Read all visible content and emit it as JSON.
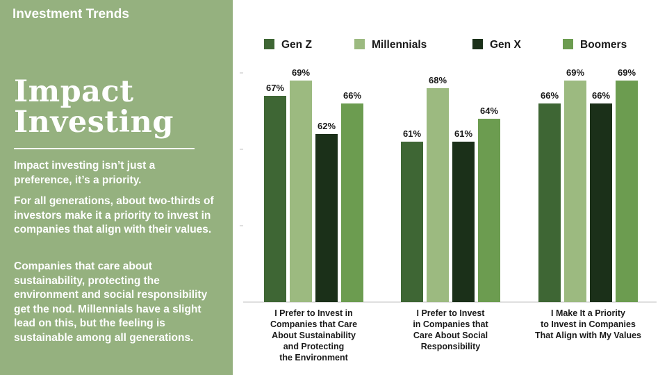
{
  "header": {
    "section_label": "Investment Trends"
  },
  "sidebar": {
    "title_line1": "Impact",
    "title_line2": "Investing",
    "paragraphs": [
      "Impact investing isn’t just a preference, it’s a priority.",
      "For all generations, about two-thirds of investors make it a priority to invest in companies that align with their values.",
      "Companies that care about sustainability, protecting the environment and social responsibility get the nod. Millennials have a slight lead on this, but the feeling is sustainable among all generations."
    ]
  },
  "colors": {
    "panel": "#95b17f",
    "gen_z": "#3e6634",
    "millennials": "#9cba80",
    "gen_x": "#1b3019",
    "boomers": "#6c9c50"
  },
  "chart_data": {
    "type": "bar",
    "title": "",
    "xlabel": "",
    "ylabel": "",
    "ylim": [
      40,
      70
    ],
    "legend_position": "top",
    "categories": [
      [
        "I Prefer to Invest in",
        "Companies that Care",
        "About Sustainability",
        "and Protecting",
        "the Environment"
      ],
      [
        "I Prefer to Invest",
        "in Companies that",
        "Care About Social",
        "Responsibility"
      ],
      [
        "I Make It a Priority",
        "to Invest in Companies",
        "That Align with My Values"
      ]
    ],
    "series": [
      {
        "name": "Gen Z",
        "color": "#3e6634",
        "values": [
          67,
          61,
          66
        ]
      },
      {
        "name": "Millennials",
        "color": "#9cba80",
        "values": [
          69,
          68,
          69
        ]
      },
      {
        "name": "Gen X",
        "color": "#1b3019",
        "values": [
          62,
          61,
          66
        ]
      },
      {
        "name": "Boomers",
        "color": "#6c9c50",
        "values": [
          66,
          64,
          69
        ]
      }
    ]
  }
}
